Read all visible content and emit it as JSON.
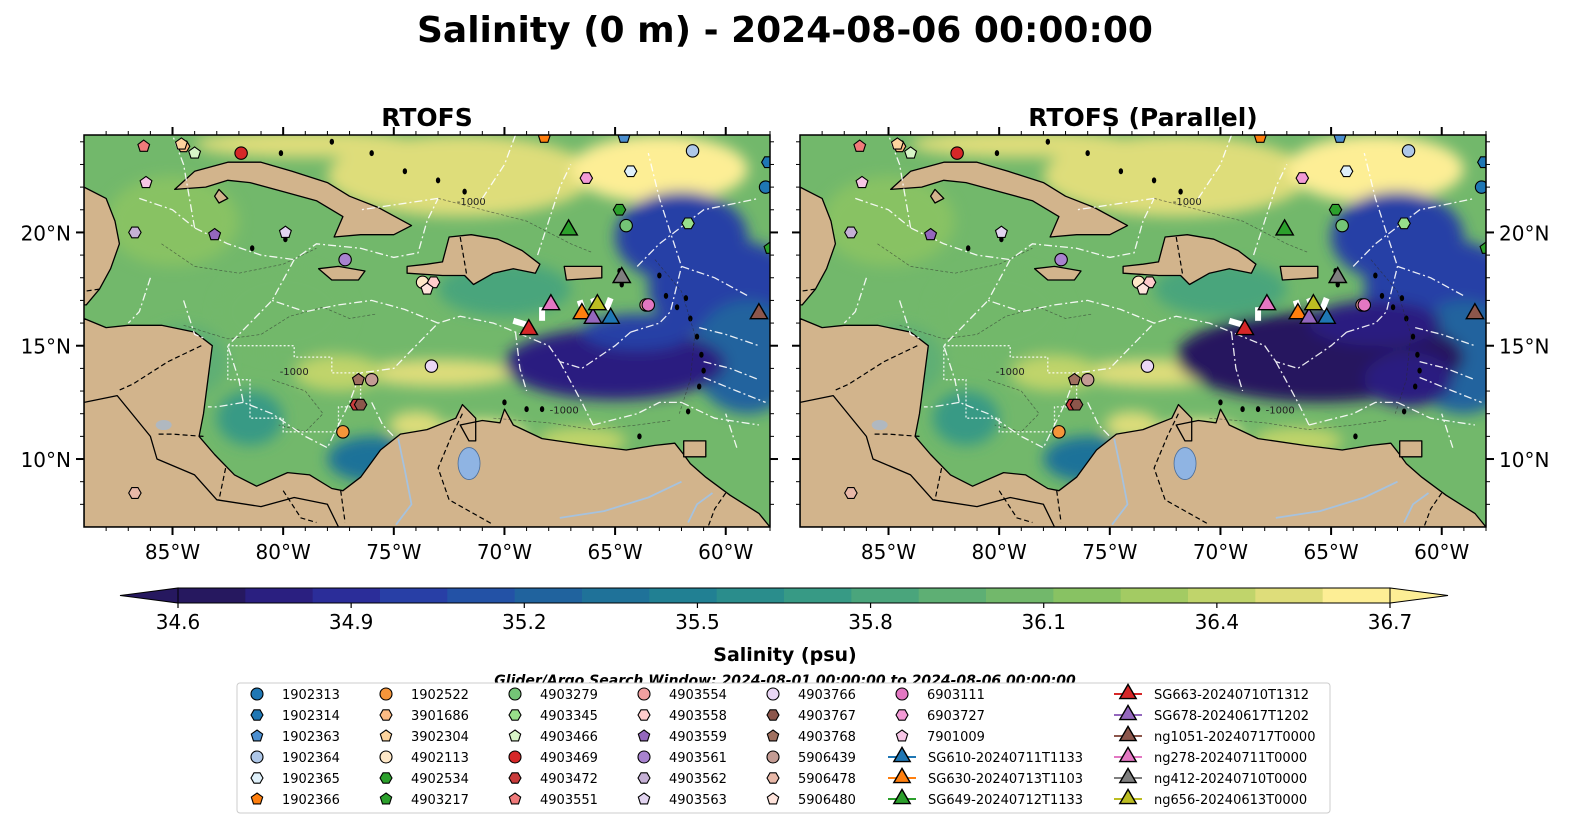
{
  "figure": {
    "suptitle": "Salinity (0 m) - 2024-08-06 00:00:00",
    "search_window": "Glider/Argo Search Window: 2024-08-01 00:00:00 to 2024-08-06 00:00:00"
  },
  "panels": [
    {
      "title": "RTOFS"
    },
    {
      "title": "RTOFS (Parallel)"
    }
  ],
  "chart_data": {
    "type": "heatmap",
    "variable": "Salinity",
    "depth": "0 m",
    "valid_time": "2024-08-06 00:00:00",
    "projection": "lon/lat map",
    "xlim": [
      -89,
      -58
    ],
    "ylim": [
      7,
      24.3
    ],
    "x_ticks": [
      -85,
      -80,
      -75,
      -70,
      -65,
      -60
    ],
    "x_tick_labels": [
      "85°W",
      "80°W",
      "75°W",
      "70°W",
      "65°W",
      "60°W"
    ],
    "y_ticks": [
      10,
      15,
      20
    ],
    "y_tick_labels": [
      "10°N",
      "15°N",
      "20°N"
    ],
    "colorbar": {
      "label": "Salinity (psu)",
      "min": 34.6,
      "max": 36.7,
      "ticks": [
        34.6,
        34.9,
        35.2,
        35.5,
        35.8,
        36.1,
        36.4,
        36.7
      ],
      "tick_labels": [
        "34.6",
        "34.9",
        "35.2",
        "35.5",
        "35.8",
        "36.1",
        "36.4",
        "36.7"
      ],
      "extend": "both",
      "colors": [
        "#26185f",
        "#2a1f80",
        "#2b2d99",
        "#283fa6",
        "#2352a6",
        "#20639e",
        "#1f7299",
        "#218093",
        "#2a8d8c",
        "#379a85",
        "#4aa57c",
        "#5eaf74",
        "#72b86b",
        "#88c263",
        "#a3cb63",
        "#c0d46b",
        "#dedd7a",
        "#fdee95"
      ]
    },
    "markers": [
      {
        "id": "1902313",
        "kind": "argo",
        "shape": "circle",
        "color": "#1f77b4",
        "lon": -58.2,
        "lat": 22.0
      },
      {
        "id": "1902314",
        "kind": "argo",
        "shape": "hexagon",
        "color": "#1f77b4",
        "lon": -58.1,
        "lat": 23.1
      },
      {
        "id": "1902363",
        "kind": "argo",
        "shape": "pentagon",
        "color": "#4c8fd0",
        "lon": -64.6,
        "lat": 24.2
      },
      {
        "id": "1902364",
        "kind": "argo",
        "shape": "circle",
        "color": "#aec7e8",
        "lon": -61.5,
        "lat": 23.6
      },
      {
        "id": "1902365",
        "kind": "argo",
        "shape": "hexagon",
        "color": "#dff0fa",
        "lon": -64.3,
        "lat": 22.7
      },
      {
        "id": "1902366",
        "kind": "argo",
        "shape": "pentagon",
        "color": "#ff7f0e",
        "lon": -68.2,
        "lat": 24.2
      },
      {
        "id": "1902522",
        "kind": "argo",
        "shape": "circle",
        "color": "#f5953a",
        "lon": -77.3,
        "lat": 11.2
      },
      {
        "id": "3901686",
        "kind": "argo",
        "shape": "hexagon",
        "color": "#fdbb84",
        "lon": -84.5,
        "lat": 23.8
      },
      {
        "id": "3902304",
        "kind": "argo",
        "shape": "pentagon",
        "color": "#fdd49e",
        "lon": -84.6,
        "lat": 23.9
      },
      {
        "id": "4902113",
        "kind": "argo",
        "shape": "circle",
        "color": "#ffe8c8",
        "lon": -73.7,
        "lat": 17.8
      },
      {
        "id": "4902534",
        "kind": "argo",
        "shape": "hexagon",
        "color": "#2ca02c",
        "lon": -64.8,
        "lat": 21.0
      },
      {
        "id": "4903217",
        "kind": "argo",
        "shape": "pentagon",
        "color": "#2ca02c",
        "lon": -58.0,
        "lat": 19.3
      },
      {
        "id": "4903279",
        "kind": "argo",
        "shape": "circle",
        "color": "#74c476",
        "lon": -64.5,
        "lat": 20.3
      },
      {
        "id": "4903345",
        "kind": "argo",
        "shape": "hexagon",
        "color": "#98df8a",
        "lon": -61.7,
        "lat": 20.4
      },
      {
        "id": "4903466",
        "kind": "argo",
        "shape": "pentagon",
        "color": "#d8f5c8",
        "lon": -84.0,
        "lat": 23.5
      },
      {
        "id": "4903469",
        "kind": "argo",
        "shape": "circle",
        "color": "#d62728",
        "lon": -81.9,
        "lat": 23.5
      },
      {
        "id": "4903472",
        "kind": "argo",
        "shape": "hexagon",
        "color": "#c93b3b",
        "lon": -76.7,
        "lat": 12.4
      },
      {
        "id": "4903551",
        "kind": "argo",
        "shape": "pentagon",
        "color": "#f07a7a",
        "lon": -86.3,
        "lat": 23.8
      },
      {
        "id": "4903554",
        "kind": "argo",
        "shape": "circle",
        "color": "#f0a0a0",
        "lon": -63.6,
        "lat": 16.8
      },
      {
        "id": "4903558",
        "kind": "argo",
        "shape": "hexagon",
        "color": "#ffcccc",
        "lon": -73.2,
        "lat": 17.8
      },
      {
        "id": "4903559",
        "kind": "argo",
        "shape": "pentagon",
        "color": "#9467bd",
        "lon": -83.1,
        "lat": 19.9
      },
      {
        "id": "4903561",
        "kind": "argo",
        "shape": "circle",
        "color": "#a883cf",
        "lon": -77.2,
        "lat": 18.8
      },
      {
        "id": "4903562",
        "kind": "argo",
        "shape": "hexagon",
        "color": "#c5b0d5",
        "lon": -86.7,
        "lat": 20.0
      },
      {
        "id": "4903563",
        "kind": "argo",
        "shape": "pentagon",
        "color": "#e2d4f0",
        "lon": -79.9,
        "lat": 20.0
      },
      {
        "id": "4903766",
        "kind": "argo",
        "shape": "circle",
        "color": "#ead7f5",
        "lon": -73.3,
        "lat": 14.1
      },
      {
        "id": "4903767",
        "kind": "argo",
        "shape": "hexagon",
        "color": "#8c564b",
        "lon": -76.5,
        "lat": 12.4
      },
      {
        "id": "4903768",
        "kind": "argo",
        "shape": "pentagon",
        "color": "#a0705f",
        "lon": -76.6,
        "lat": 13.5
      },
      {
        "id": "5906439",
        "kind": "argo",
        "shape": "circle",
        "color": "#c49c94",
        "lon": -76.0,
        "lat": 13.5
      },
      {
        "id": "5906478",
        "kind": "argo",
        "shape": "hexagon",
        "color": "#e8b8a8",
        "lon": -86.7,
        "lat": 8.5
      },
      {
        "id": "5906480",
        "kind": "argo",
        "shape": "pentagon",
        "color": "#ffe4dc",
        "lon": -73.5,
        "lat": 17.5
      },
      {
        "id": "6903111",
        "kind": "argo",
        "shape": "circle",
        "color": "#e377c2",
        "lon": -63.5,
        "lat": 16.8
      },
      {
        "id": "6903727",
        "kind": "argo",
        "shape": "hexagon",
        "color": "#f29ad5",
        "lon": -66.3,
        "lat": 22.4
      },
      {
        "id": "7901009",
        "kind": "argo",
        "shape": "pentagon",
        "color": "#f7c6e6",
        "lon": -86.2,
        "lat": 22.2
      },
      {
        "id": "SG610-20240711T1133",
        "kind": "glider",
        "shape": "triangle",
        "color": "#1f77b4",
        "lon": -65.2,
        "lat": 16.3
      },
      {
        "id": "SG630-20240713T1103",
        "kind": "glider",
        "shape": "triangle",
        "color": "#ff7f0e",
        "lon": -66.5,
        "lat": 16.5
      },
      {
        "id": "SG649-20240712T1133",
        "kind": "glider",
        "shape": "triangle",
        "color": "#2ca02c",
        "lon": -67.1,
        "lat": 20.2
      },
      {
        "id": "SG663-20240710T1312",
        "kind": "glider",
        "shape": "triangle",
        "color": "#d62728",
        "lon": -68.9,
        "lat": 15.8
      },
      {
        "id": "SG678-20240617T1202",
        "kind": "glider",
        "shape": "triangle",
        "color": "#9467bd",
        "lon": -66.0,
        "lat": 16.3
      },
      {
        "id": "ng1051-20240717T0000",
        "kind": "glider",
        "shape": "triangle",
        "color": "#8c564b",
        "lon": -58.5,
        "lat": 16.5
      },
      {
        "id": "ng278-20240711T0000",
        "kind": "glider",
        "shape": "triangle",
        "color": "#e377c2",
        "lon": -67.9,
        "lat": 16.9
      },
      {
        "id": "ng412-20240710T0000",
        "kind": "glider",
        "shape": "triangle",
        "color": "#7f7f7f",
        "lon": -64.7,
        "lat": 18.1
      },
      {
        "id": "ng656-20240613T0000",
        "kind": "glider",
        "shape": "triangle",
        "color": "#bcbd22",
        "lon": -65.8,
        "lat": 16.9
      }
    ],
    "legend": {
      "placement": "bottom-center",
      "columns": 7
    },
    "colors": {
      "land": "#d2b48c",
      "lake": "#8fb4e3",
      "eez_lines": "#ffffff",
      "coast": "#000000"
    }
  }
}
